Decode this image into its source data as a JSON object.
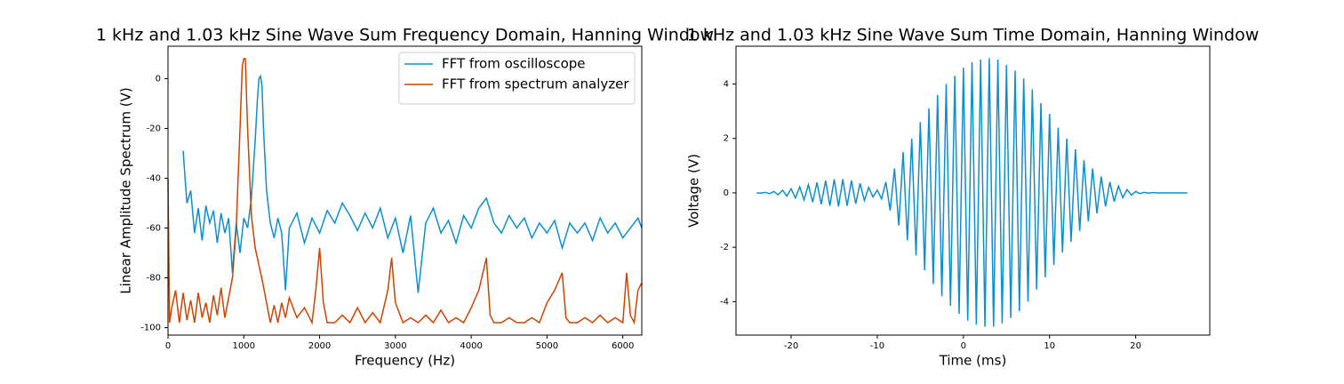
{
  "chart_data": [
    {
      "type": "line",
      "title": "1 kHz and 1.03 kHz Sine Wave Sum Frequency Domain, Hanning Window",
      "xlabel": "Frequency (Hz)",
      "ylabel": "Linear Amplitude Spectrum (V)",
      "xlim": [
        0,
        6250
      ],
      "ylim": [
        -103,
        13
      ],
      "xticks": [
        0,
        1000,
        2000,
        3000,
        4000,
        5000,
        6000
      ],
      "yticks": [
        -100,
        -80,
        -60,
        -40,
        -20,
        0
      ],
      "legend": "upper right",
      "grid": false,
      "series": [
        {
          "name": "FFT from oscilloscope",
          "color": "#0c8fce",
          "x": [
            200,
            225,
            250,
            300,
            350,
            400,
            450,
            500,
            550,
            600,
            650,
            700,
            750,
            800,
            850,
            900,
            950,
            1000,
            1050,
            1100,
            1150,
            1180,
            1200,
            1220,
            1240,
            1260,
            1300,
            1350,
            1400,
            1450,
            1500,
            1550,
            1600,
            1700,
            1800,
            1900,
            2000,
            2100,
            2200,
            2300,
            2400,
            2500,
            2600,
            2700,
            2800,
            2900,
            3000,
            3100,
            3200,
            3300,
            3400,
            3500,
            3600,
            3700,
            3800,
            3900,
            4000,
            4100,
            4200,
            4300,
            4400,
            4500,
            4600,
            4700,
            4800,
            4900,
            5000,
            5100,
            5200,
            5300,
            5400,
            5500,
            5600,
            5700,
            5800,
            5900,
            6000,
            6100,
            6200,
            6250
          ],
          "values": [
            -29,
            -40,
            -50,
            -45,
            -62,
            -52,
            -65,
            -51,
            -58,
            -53,
            -66,
            -54,
            -62,
            -56,
            -78,
            -58,
            -70,
            -56,
            -60,
            -48,
            -25,
            -8,
            0,
            1,
            -3,
            -20,
            -45,
            -58,
            -64,
            -56,
            -62,
            -85,
            -60,
            -54,
            -66,
            -56,
            -62,
            -53,
            -58,
            -50,
            -55,
            -61,
            -54,
            -60,
            -52,
            -64,
            -56,
            -70,
            -55,
            -86,
            -58,
            -52,
            -62,
            -57,
            -66,
            -55,
            -60,
            -52,
            -48,
            -58,
            -62,
            -55,
            -60,
            -56,
            -64,
            -58,
            -62,
            -57,
            -68,
            -58,
            -62,
            -58,
            -65,
            -56,
            -62,
            -58,
            -64,
            -60,
            -56,
            -60
          ]
        },
        {
          "name": "FFT from spectrum analyzer",
          "color": "#cc4400",
          "x": [
            0,
            20,
            50,
            100,
            150,
            200,
            250,
            300,
            350,
            400,
            450,
            500,
            550,
            600,
            650,
            700,
            750,
            800,
            850,
            900,
            950,
            980,
            1000,
            1020,
            1050,
            1100,
            1150,
            1200,
            1250,
            1300,
            1350,
            1400,
            1450,
            1500,
            1550,
            1600,
            1700,
            1800,
            1900,
            1950,
            2000,
            2050,
            2100,
            2200,
            2300,
            2400,
            2500,
            2600,
            2700,
            2800,
            2900,
            2950,
            3000,
            3100,
            3200,
            3300,
            3400,
            3500,
            3600,
            3700,
            3800,
            3900,
            4000,
            4100,
            4200,
            4250,
            4300,
            4400,
            4500,
            4600,
            4700,
            4800,
            4900,
            5000,
            5100,
            5200,
            5250,
            5300,
            5400,
            5500,
            5600,
            5700,
            5800,
            5900,
            6000,
            6050,
            6100,
            6150,
            6200,
            6250
          ],
          "values": [
            -40,
            -98,
            -92,
            -85,
            -98,
            -86,
            -97,
            -89,
            -98,
            -86,
            -96,
            -90,
            -98,
            -87,
            -95,
            -84,
            -96,
            -88,
            -80,
            -60,
            -20,
            5,
            8,
            8,
            -20,
            -55,
            -68,
            -75,
            -82,
            -90,
            -98,
            -91,
            -98,
            -90,
            -96,
            -88,
            -96,
            -92,
            -98,
            -85,
            -68,
            -90,
            -98,
            -98,
            -95,
            -98,
            -92,
            -98,
            -94,
            -98,
            -85,
            -72,
            -90,
            -98,
            -96,
            -98,
            -95,
            -98,
            -93,
            -98,
            -96,
            -98,
            -92,
            -85,
            -72,
            -95,
            -98,
            -98,
            -96,
            -98,
            -98,
            -96,
            -98,
            -90,
            -85,
            -78,
            -96,
            -98,
            -98,
            -96,
            -98,
            -95,
            -98,
            -96,
            -98,
            -78,
            -95,
            -98,
            -85,
            -82
          ]
        }
      ]
    },
    {
      "type": "line",
      "title": "1 kHz and 1.03 kHz Sine Wave Sum Time Domain, Hanning Window",
      "xlabel": "Time (ms)",
      "ylabel": "Voltage (V)",
      "xlim": [
        -26.4,
        28.6
      ],
      "ylim": [
        -5.23,
        5.39
      ],
      "xticks": [
        -20,
        -10,
        0,
        10,
        20
      ],
      "yticks": [
        -4,
        -2,
        0,
        2,
        4
      ],
      "grid": false,
      "series": [
        {
          "color": "#0c8fce",
          "x": [
            -24,
            -23.5,
            -23,
            -22.5,
            -22,
            -21.5,
            -21,
            -20.5,
            -20,
            -19.5,
            -19,
            -18.5,
            -18,
            -17.5,
            -17,
            -16.5,
            -16,
            -15.5,
            -15,
            -14.5,
            -14,
            -13.5,
            -13,
            -12.5,
            -12,
            -11.5,
            -11,
            -10.5,
            -10,
            -9.5,
            -9,
            -8.5,
            -8,
            -7.5,
            -7,
            -6.5,
            -6,
            -5.5,
            -5,
            -4.5,
            -4,
            -3.5,
            -3,
            -2.5,
            -2,
            -1.5,
            -1,
            -0.5,
            0,
            0.5,
            1,
            1.5,
            2,
            2.5,
            3,
            3.5,
            4,
            4.5,
            5,
            5.5,
            6,
            6.5,
            7,
            7.5,
            8,
            8.5,
            9,
            9.5,
            10,
            10.5,
            11,
            11.5,
            12,
            12.5,
            13,
            13.5,
            14,
            14.5,
            15,
            15.5,
            16,
            16.5,
            17,
            17.5,
            18,
            18.5,
            19,
            19.5,
            20,
            20.5,
            21,
            21.5,
            22,
            22.5,
            23,
            23.5,
            24,
            24.5,
            25,
            25.5,
            26
          ],
          "values": [
            0,
            -0.01,
            0.02,
            -0.03,
            0.05,
            -0.07,
            0.1,
            -0.12,
            0.15,
            -0.19,
            0.22,
            -0.26,
            0.3,
            -0.34,
            0.38,
            -0.42,
            0.45,
            -0.48,
            0.5,
            -0.5,
            0.5,
            -0.48,
            0.45,
            -0.4,
            0.35,
            -0.28,
            0.2,
            -0.15,
            0.1,
            -0.22,
            0.4,
            -0.65,
            0.9,
            -1.2,
            1.5,
            -1.75,
            2,
            -2.3,
            2.6,
            -2.85,
            3.1,
            -3.35,
            3.6,
            -3.8,
            4,
            -4.15,
            4.3,
            -4.45,
            4.6,
            -4.7,
            4.8,
            -4.85,
            4.9,
            -4.92,
            4.95,
            -4.92,
            4.9,
            -4.8,
            4.7,
            -4.6,
            4.5,
            -4.35,
            4.2,
            -4,
            3.8,
            -3.55,
            3.3,
            -3.1,
            2.9,
            -2.65,
            2.4,
            -2.2,
            2,
            -1.8,
            1.6,
            -1.4,
            1.2,
            -1.05,
            0.9,
            -0.75,
            0.6,
            -0.5,
            0.4,
            -0.32,
            0.25,
            -0.18,
            0.12,
            -0.08,
            0.05,
            -0.03,
            0.02,
            -0.01,
            0.01,
            0,
            0,
            0,
            0,
            0,
            0,
            0,
            0
          ]
        }
      ]
    }
  ]
}
